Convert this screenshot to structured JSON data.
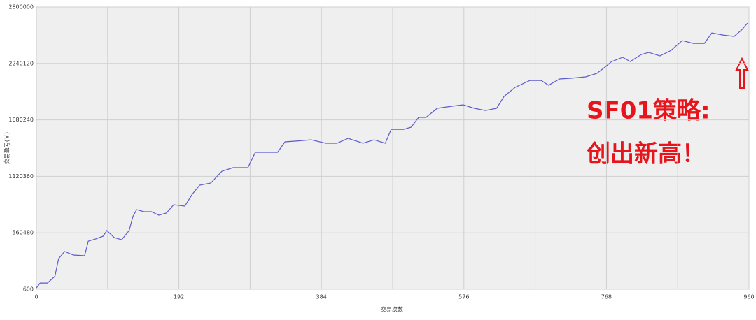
{
  "chart_data": {
    "type": "line",
    "x_label": "交易次数",
    "y_label": "交易盈亏(￥)",
    "annotations": [
      "SF01策略:",
      "创出新高！"
    ],
    "x": [
      0,
      5,
      15,
      25,
      30,
      38,
      50,
      65,
      70,
      80,
      90,
      95,
      105,
      115,
      125,
      130,
      135,
      145,
      155,
      165,
      175,
      185,
      200,
      210,
      220,
      235,
      250,
      265,
      285,
      295,
      310,
      325,
      335,
      350,
      370,
      390,
      405,
      420,
      440,
      455,
      470,
      478,
      495,
      505,
      515,
      525,
      540,
      560,
      575,
      590,
      605,
      620,
      630,
      645,
      665,
      680,
      690,
      705,
      720,
      740,
      755,
      765,
      775,
      790,
      800,
      815,
      825,
      840,
      855,
      870,
      885,
      900,
      910,
      925,
      940,
      950,
      958
    ],
    "series": [
      {
        "name": "交易盈亏",
        "color": "#5b5bd0",
        "values": [
          14000,
          62000,
          62000,
          130000,
          305000,
          375000,
          340000,
          333000,
          478000,
          500000,
          527000,
          583000,
          513000,
          492000,
          583000,
          721000,
          790000,
          770000,
          770000,
          735000,
          756000,
          839000,
          825000,
          943000,
          1033000,
          1054000,
          1171000,
          1206000,
          1206000,
          1359000,
          1359000,
          1359000,
          1463000,
          1470000,
          1483000,
          1449000,
          1449000,
          1497000,
          1449000,
          1483000,
          1449000,
          1587000,
          1587000,
          1608000,
          1705000,
          1705000,
          1795000,
          1816000,
          1830000,
          1795000,
          1774000,
          1795000,
          1913000,
          2003000,
          2072000,
          2072000,
          2024000,
          2086000,
          2093000,
          2107000,
          2141000,
          2197000,
          2259000,
          2301000,
          2259000,
          2329000,
          2349000,
          2315000,
          2370000,
          2467000,
          2439000,
          2439000,
          2543000,
          2522000,
          2508000,
          2571000,
          2640000
        ]
      }
    ],
    "xlim": [
      0,
      960
    ],
    "xticks": [
      0,
      192,
      384,
      576,
      768,
      960
    ],
    "x_minor_ticks": [
      96,
      288,
      480,
      672,
      864
    ],
    "ylim": [
      600,
      2800000
    ],
    "yticks": [
      600,
      560480,
      1120360,
      1680240,
      2240120,
      2800000
    ],
    "grid": true
  }
}
